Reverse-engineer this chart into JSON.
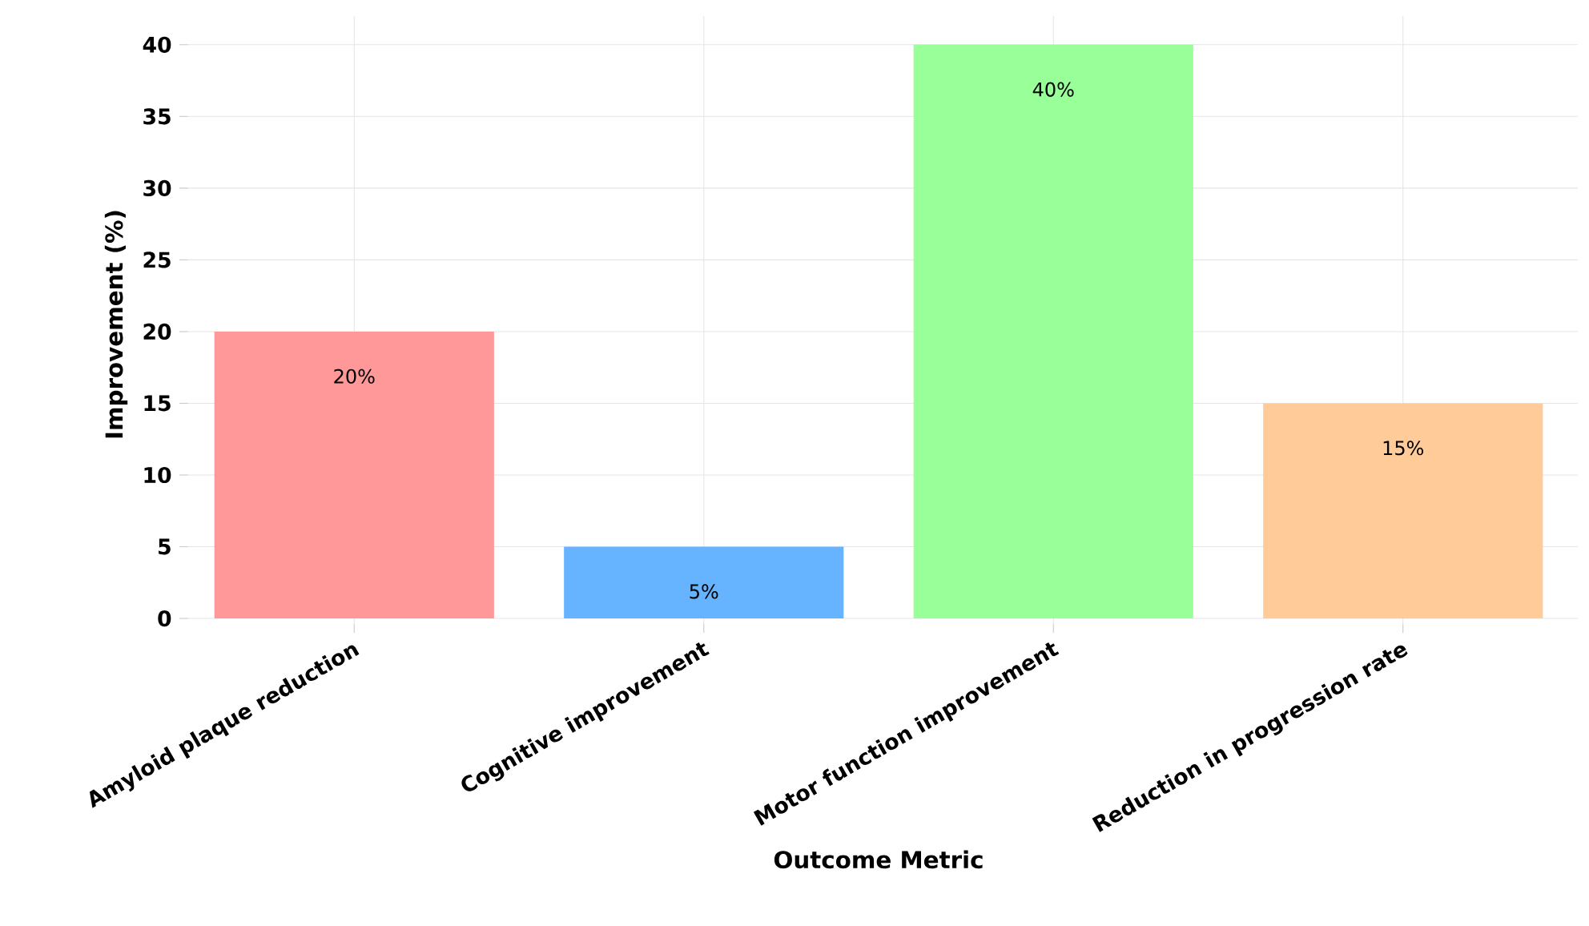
{
  "chart_data": {
    "type": "bar",
    "xlabel": "Outcome Metric",
    "ylabel": "Improvement (%)",
    "categories": [
      "Amyloid plaque reduction",
      "Cognitive improvement",
      "Motor function improvement",
      "Reduction in progression rate"
    ],
    "values": [
      20,
      5,
      40,
      15
    ],
    "colors": [
      "#ff9999",
      "#66b3ff",
      "#99ff99",
      "#ffcc99"
    ],
    "value_labels": [
      "20%",
      "5%",
      "40%",
      "15%"
    ],
    "ylim": [
      -1,
      42
    ],
    "yticks": [
      0,
      5,
      10,
      15,
      20,
      25,
      30,
      35,
      40
    ],
    "grid": true
  }
}
